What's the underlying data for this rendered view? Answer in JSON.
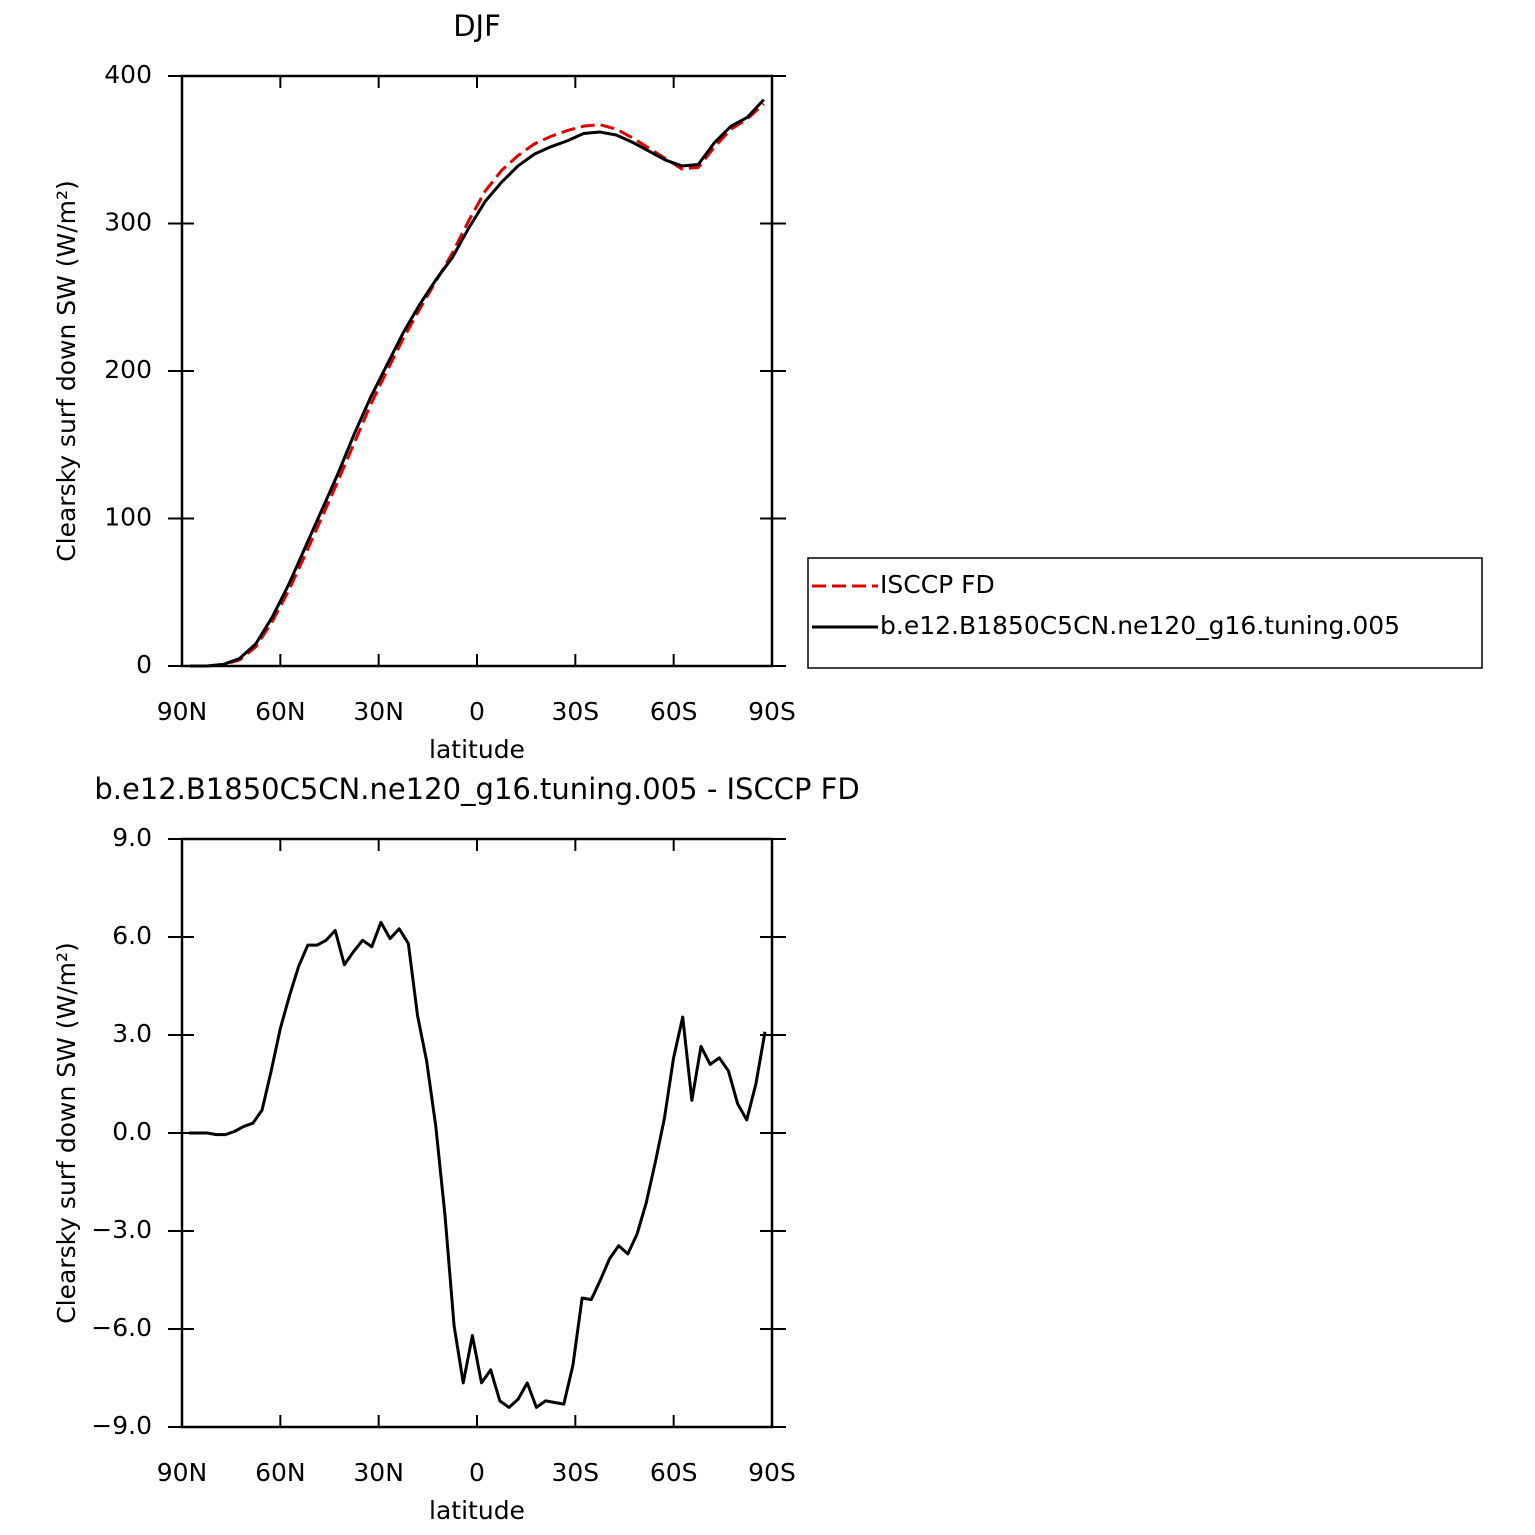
{
  "chart_data": [
    {
      "type": "line",
      "title": "DJF",
      "xlabel": "latitude",
      "ylabel": "Clearsky surf down SW (W/m²)",
      "x": [
        87.5,
        82.5,
        77.5,
        72.5,
        67.5,
        62.5,
        57.5,
        52.5,
        47.5,
        42.5,
        37.5,
        32.5,
        27.5,
        22.5,
        17.5,
        12.5,
        7.5,
        2.5,
        -2.5,
        -7.5,
        -12.5,
        -17.5,
        -22.5,
        -27.5,
        -32.5,
        -37.5,
        -42.5,
        -47.5,
        -52.5,
        -57.5,
        -62.5,
        -67.5,
        -72.5,
        -77.5,
        -82.5,
        -87.5
      ],
      "series": [
        {
          "name": "ISCCP FD",
          "color": "#e00000",
          "dashed": true,
          "values": [
            0,
            0,
            1,
            4,
            13,
            30,
            51,
            75,
            100,
            125,
            151,
            177,
            200,
            222,
            242,
            261,
            280,
            302,
            322,
            336,
            346,
            354,
            359,
            363,
            366,
            367,
            364,
            358,
            351,
            344,
            337,
            338,
            352,
            364,
            371,
            381
          ]
        },
        {
          "name": "b.e12.B1850C5CN.ne120_g16.tuning.005",
          "color": "#000000",
          "values": [
            0,
            0,
            1,
            5,
            15,
            33,
            55,
            80,
            105,
            130,
            157,
            182,
            204,
            226,
            245,
            262,
            277,
            297,
            315,
            328,
            339,
            347,
            352,
            356,
            361,
            362,
            360,
            355,
            349,
            343,
            339,
            340,
            355,
            366,
            372,
            384
          ]
        }
      ],
      "xlim": [
        90,
        -90
      ],
      "xticks": [
        {
          "value": 90,
          "label": "90N"
        },
        {
          "value": 60,
          "label": "60N"
        },
        {
          "value": 30,
          "label": "30N"
        },
        0,
        {
          "value": -30,
          "label": "30S"
        },
        {
          "value": -60,
          "label": "60S"
        },
        {
          "value": -90,
          "label": "90S"
        }
      ],
      "ylim": [
        0,
        400
      ],
      "yticks": [
        0,
        100,
        200,
        300,
        400
      ],
      "legend": "right"
    },
    {
      "type": "line",
      "title": "b.e12.B1850C5CN.ne120_g16.tuning.005 - ISCCP FD",
      "xlabel": "latitude",
      "ylabel": "Clearsky surf down SW (W/m²)",
      "x": [
        87.9,
        85.11,
        82.32,
        79.53,
        76.74,
        73.95,
        71.16,
        68.37,
        65.58,
        62.79,
        60,
        57.21,
        54.42,
        51.63,
        48.84,
        46.05,
        43.26,
        40.47,
        37.68,
        34.89,
        32.1,
        29.31,
        26.52,
        23.73,
        20.94,
        18.15,
        15.36,
        12.57,
        9.78,
        6.99,
        4.2,
        1.41,
        -1.38,
        -4.17,
        -6.96,
        -9.75,
        -12.54,
        -15.33,
        -18.12,
        -20.91,
        -23.7,
        -26.49,
        -29.28,
        -32.07,
        -34.86,
        -37.65,
        -40.44,
        -43.23,
        -46.02,
        -48.81,
        -51.6,
        -54.39,
        -57.18,
        -59.97,
        -62.76,
        -65.55,
        -68.34,
        -71.13,
        -73.92,
        -76.71,
        -79.5,
        -82.29,
        -85.08,
        -87.87
      ],
      "series": [
        {
          "color": "#000000",
          "values": [
            0,
            0,
            0,
            -0.05,
            -0.05,
            0.05,
            0.2,
            0.3,
            0.7,
            1.9,
            3.2,
            4.2,
            5.1,
            5.75,
            5.75,
            5.9,
            6.2,
            5.15,
            5.55,
            5.9,
            5.7,
            6.45,
            5.95,
            6.25,
            5.8,
            3.6,
            2.2,
            0.2,
            -2.5,
            -5.9,
            -7.65,
            -6.2,
            -7.65,
            -7.25,
            -8.2,
            -8.4,
            -8.15,
            -7.65,
            -8.4,
            -8.2,
            -8.25,
            -8.3,
            -7.1,
            -5.05,
            -5.1,
            -4.5,
            -3.85,
            -3.45,
            -3.7,
            -3.1,
            -2.15,
            -0.9,
            0.45,
            2.3,
            3.55,
            1.0,
            2.65,
            2.1,
            2.3,
            1.9,
            0.9,
            0.4,
            1.5,
            3.1
          ]
        }
      ],
      "xlim": [
        90,
        -90
      ],
      "xticks": [
        {
          "value": 90,
          "label": "90N"
        },
        {
          "value": 60,
          "label": "60N"
        },
        {
          "value": 30,
          "label": "30N"
        },
        0,
        {
          "value": -30,
          "label": "30S"
        },
        {
          "value": -60,
          "label": "60S"
        },
        {
          "value": -90,
          "label": "90S"
        }
      ],
      "ylim": [
        -9,
        9
      ],
      "yticks": [
        {
          "value": -9,
          "label": "−9.0"
        },
        {
          "value": -6,
          "label": "−6.0"
        },
        {
          "value": -3,
          "label": "−3.0"
        },
        {
          "value": 0,
          "label": "0.0"
        },
        {
          "value": 3,
          "label": "3.0"
        },
        {
          "value": 6,
          "label": "6.0"
        },
        {
          "value": 9,
          "label": "9.0"
        }
      ]
    }
  ]
}
